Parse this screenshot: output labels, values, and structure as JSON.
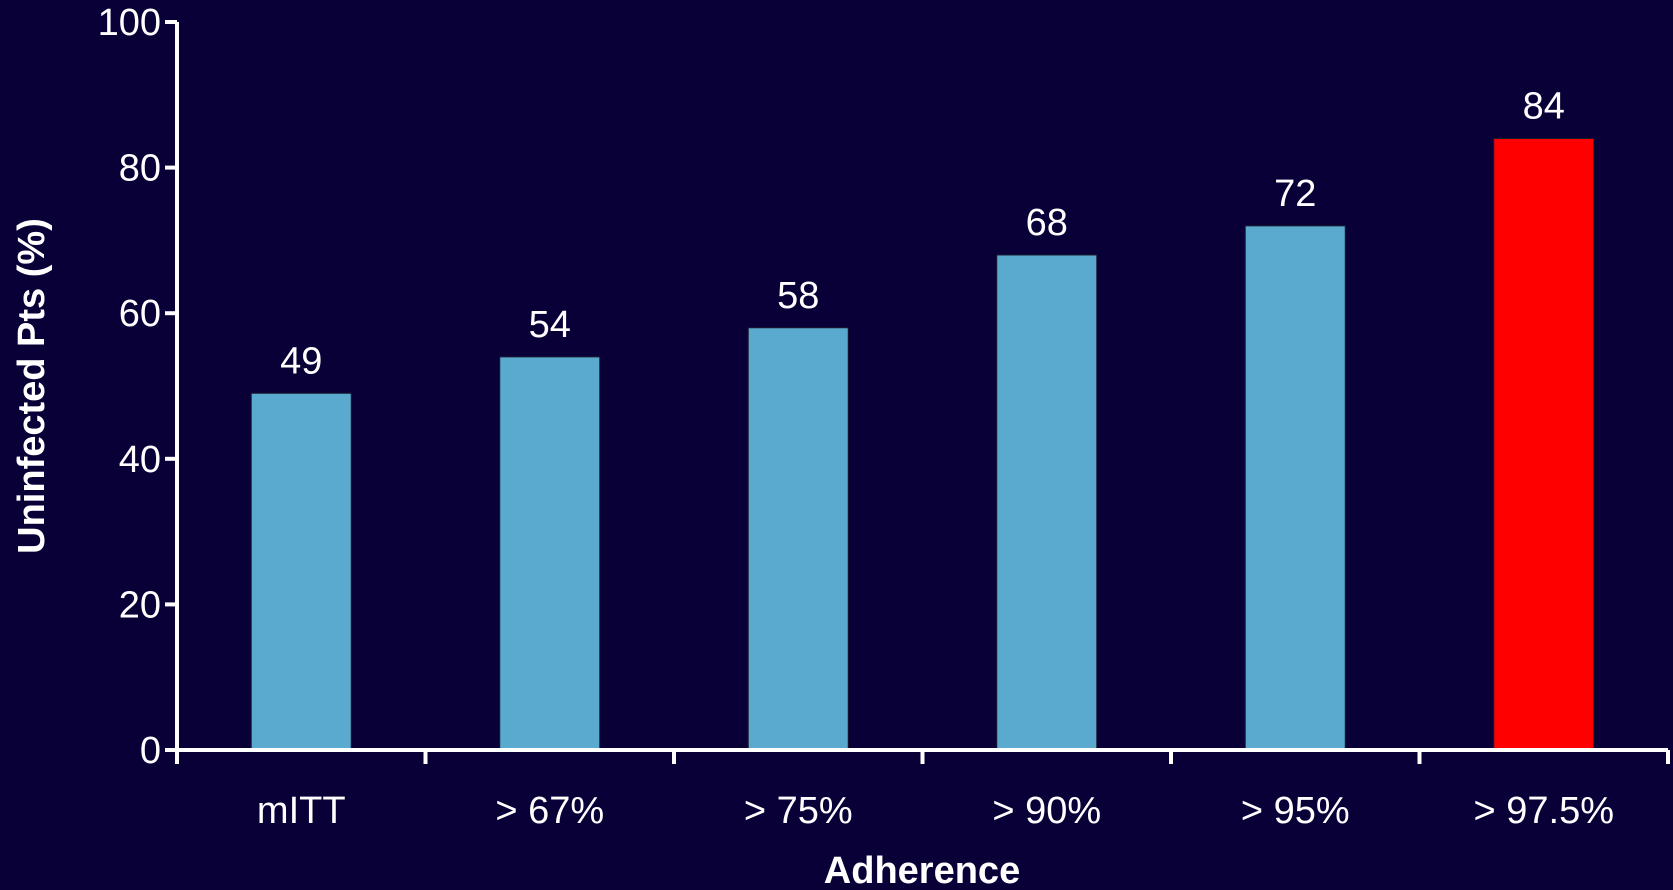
{
  "chart_data": {
    "type": "bar",
    "title": "",
    "xlabel": "Adherence",
    "ylabel": "Uninfected Pts (%)",
    "categories": [
      "mITT",
      "> 67%",
      "> 75%",
      "> 90%",
      "> 95%",
      "> 97.5%"
    ],
    "values": [
      49,
      54,
      58,
      68,
      72,
      84
    ],
    "value_labels": [
      "49",
      "54",
      "58",
      "68",
      "72",
      "84"
    ],
    "bar_colors": [
      "#5aaacf",
      "#5aaacf",
      "#5aaacf",
      "#5aaacf",
      "#5aaacf",
      "#ff0000"
    ],
    "ylim": [
      0,
      100
    ],
    "yticks": [
      0,
      20,
      40,
      60,
      80,
      100
    ],
    "grid": false,
    "legend": "none",
    "colors": {
      "background": "#0a0038",
      "axis": "#ffffff",
      "text": "#ffffff",
      "bar": "#5aaacf",
      "highlight": "#ff0000"
    }
  }
}
